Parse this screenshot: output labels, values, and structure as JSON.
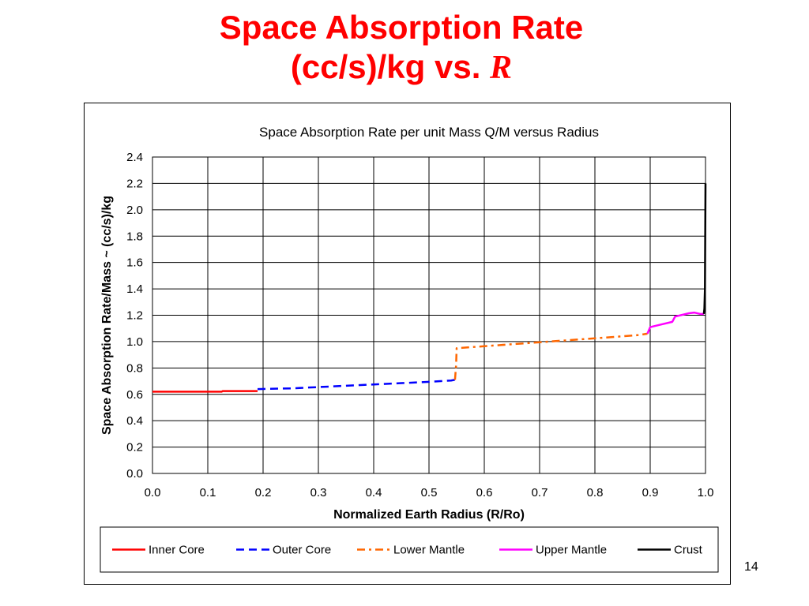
{
  "slide": {
    "title_line1": "Space Absorption Rate",
    "title_line2_prefix": "(cc/s)/kg vs. ",
    "title_line2_var": "R",
    "page_number": "14"
  },
  "chart_data": {
    "type": "line",
    "title": "Space Absorption Rate per unit Mass Q/M versus Radius",
    "xlabel": "Normalized Earth Radius (R/Ro)",
    "ylabel": "Space Absorption Rate/Mass ~ (cc/s)/kg",
    "xlim": [
      0.0,
      1.0
    ],
    "ylim": [
      0.0,
      2.4
    ],
    "x_ticks": [
      "0.0",
      "0.1",
      "0.2",
      "0.3",
      "0.4",
      "0.5",
      "0.6",
      "0.7",
      "0.8",
      "0.9",
      "1.0"
    ],
    "y_ticks": [
      "0.0",
      "0.2",
      "0.4",
      "0.6",
      "0.8",
      "1.0",
      "1.2",
      "1.4",
      "1.6",
      "1.8",
      "2.0",
      "2.2",
      "2.4"
    ],
    "grid": true,
    "legend_position": "bottom",
    "series": [
      {
        "name": "Inner Core",
        "color": "#ff0000",
        "dash": "solid",
        "points": [
          [
            0.0,
            0.62
          ],
          [
            0.125,
            0.62
          ],
          [
            0.127,
            0.625
          ],
          [
            0.19,
            0.625
          ]
        ]
      },
      {
        "name": "Outer Core",
        "color": "#0000ff",
        "dash": "dashed",
        "points": [
          [
            0.19,
            0.64
          ],
          [
            0.25,
            0.645
          ],
          [
            0.3,
            0.655
          ],
          [
            0.35,
            0.665
          ],
          [
            0.4,
            0.675
          ],
          [
            0.45,
            0.685
          ],
          [
            0.5,
            0.695
          ],
          [
            0.54,
            0.705
          ],
          [
            0.547,
            0.71
          ]
        ]
      },
      {
        "name": "Lower Mantle",
        "color": "#ff6600",
        "dash": "dashdot",
        "points": [
          [
            0.547,
            0.71
          ],
          [
            0.549,
            0.82
          ],
          [
            0.55,
            0.95
          ],
          [
            0.6,
            0.965
          ],
          [
            0.65,
            0.98
          ],
          [
            0.7,
            0.995
          ],
          [
            0.75,
            1.01
          ],
          [
            0.8,
            1.025
          ],
          [
            0.85,
            1.04
          ],
          [
            0.88,
            1.05
          ],
          [
            0.895,
            1.06
          ]
        ]
      },
      {
        "name": "Upper Mantle",
        "color": "#ff00ff",
        "dash": "solid",
        "points": [
          [
            0.895,
            1.06
          ],
          [
            0.9,
            1.11
          ],
          [
            0.92,
            1.13
          ],
          [
            0.94,
            1.15
          ],
          [
            0.945,
            1.19
          ],
          [
            0.97,
            1.215
          ],
          [
            0.98,
            1.22
          ],
          [
            0.99,
            1.21
          ],
          [
            0.997,
            1.21
          ]
        ]
      },
      {
        "name": "Crust",
        "color": "#000000",
        "dash": "solid",
        "points": [
          [
            0.997,
            1.21
          ],
          [
            0.998,
            1.25
          ],
          [
            0.999,
            1.4
          ],
          [
            0.9995,
            1.8
          ],
          [
            1.0,
            2.2
          ]
        ]
      }
    ]
  }
}
